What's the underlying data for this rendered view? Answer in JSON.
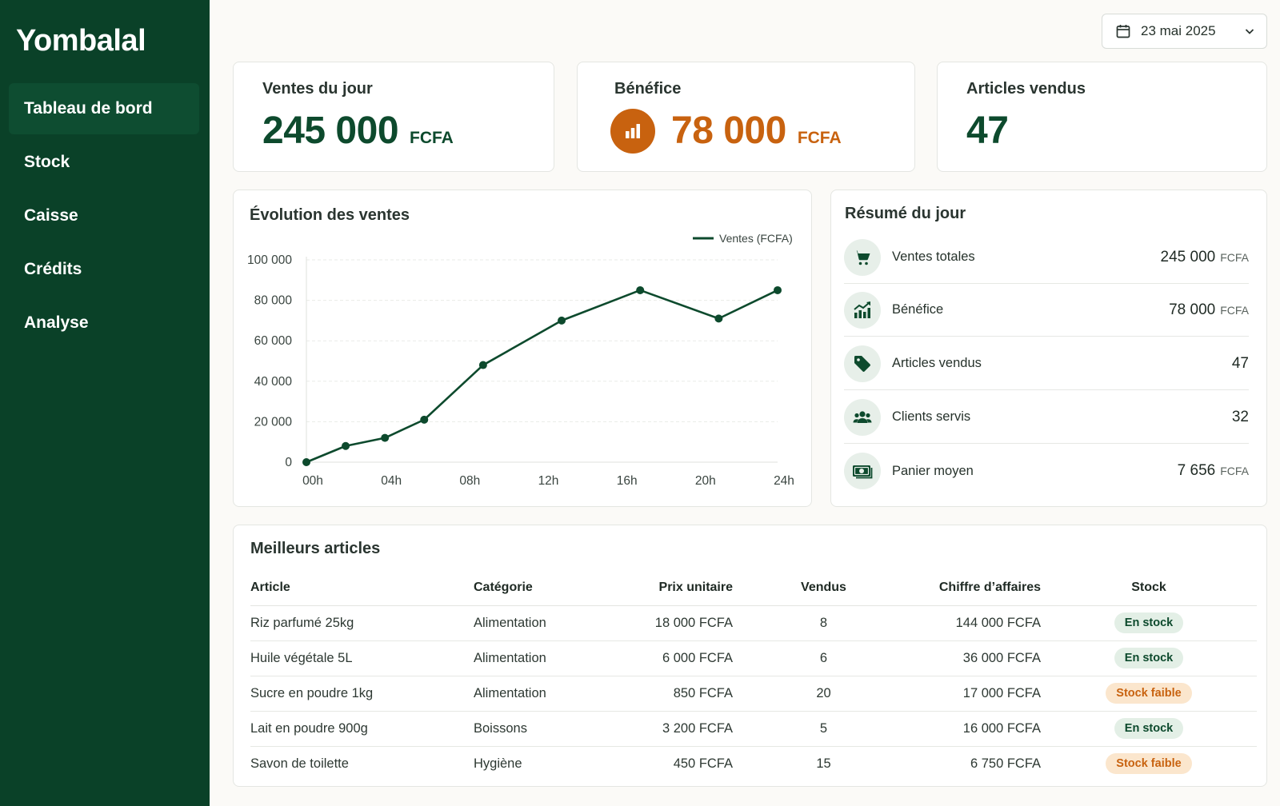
{
  "app": {
    "brand": "Yombalal"
  },
  "sidebar": {
    "items": [
      {
        "label": "Tableau de bord",
        "active": true
      },
      {
        "label": "Stock",
        "active": false
      },
      {
        "label": "Caisse",
        "active": false
      },
      {
        "label": "Crédits",
        "active": false
      },
      {
        "label": "Analyse",
        "active": false
      }
    ]
  },
  "date_picker": {
    "value": "23 mai 2025",
    "icon": "calendar-icon"
  },
  "kpis": [
    {
      "title": "Ventes du jour",
      "value": "245 000",
      "unit": "FCFA",
      "color": "#0d4a2d"
    },
    {
      "title": "Bénéfice",
      "value": "78 000",
      "unit": "FCFA",
      "color": "#c8620f",
      "icon": "bar-chart-icon"
    },
    {
      "title": "Articles vendus",
      "value": "47",
      "unit": "",
      "color": "#0d4a2d"
    }
  ],
  "sales_chart": {
    "title": "Évolution des ventes",
    "legend": "Ventes (FCFA)"
  },
  "chart_data": {
    "type": "line",
    "x": [
      0,
      2,
      4,
      6,
      9,
      13,
      17,
      21,
      24
    ],
    "x_tick_labels": [
      "00h",
      "04h",
      "08h",
      "12h",
      "16h",
      "20h",
      "24h"
    ],
    "x_ticks": [
      0,
      4,
      8,
      12,
      16,
      20,
      24
    ],
    "series": [
      {
        "name": "Ventes (FCFA)",
        "values": [
          0,
          8000,
          12000,
          21000,
          48000,
          70000,
          85000,
          71000,
          85000
        ]
      }
    ],
    "y_tick_labels": [
      "0",
      "20 000",
      "40 000",
      "60 000",
      "80 000",
      "100 000"
    ],
    "ylim": [
      0,
      100000
    ],
    "xlim": [
      0,
      24
    ],
    "grid": true,
    "legend_position": "top-right",
    "line_color": "#0d4a2d"
  },
  "summary": {
    "title": "Résumé du jour",
    "rows": [
      {
        "icon": "cart-icon",
        "label": "Ventes totales",
        "value": "245 000",
        "unit": "FCFA"
      },
      {
        "icon": "growth-chart-icon",
        "label": "Bénéfice",
        "value": "78 000",
        "unit": "FCFA"
      },
      {
        "icon": "tag-icon",
        "label": "Articles vendus",
        "value": "47",
        "unit": ""
      },
      {
        "icon": "users-icon",
        "label": "Clients servis",
        "value": "32",
        "unit": ""
      },
      {
        "icon": "cash-icon",
        "label": "Panier moyen",
        "value": "7 656",
        "unit": "FCFA"
      }
    ]
  },
  "best_items": {
    "title": "Meilleurs articles",
    "columns": [
      "Article",
      "Catégorie",
      "Prix unitaire",
      "Vendus",
      "Chiffre d’affaires",
      "Stock"
    ],
    "rows": [
      {
        "article": "Riz parfumé 25kg",
        "category": "Alimentation",
        "price": "18 000 FCFA",
        "sold": "8",
        "revenue": "144 000 FCFA",
        "stock": "En stock",
        "stock_level": "ok"
      },
      {
        "article": "Huile végétale 5L",
        "category": "Alimentation",
        "price": "6 000 FCFA",
        "sold": "6",
        "revenue": "36 000 FCFA",
        "stock": "En stock",
        "stock_level": "ok"
      },
      {
        "article": "Sucre en poudre 1kg",
        "category": "Alimentation",
        "price": "850 FCFA",
        "sold": "20",
        "revenue": "17 000 FCFA",
        "stock": "Stock faible",
        "stock_level": "low"
      },
      {
        "article": "Lait en poudre 900g",
        "category": "Boissons",
        "price": "3 200 FCFA",
        "sold": "5",
        "revenue": "16 000 FCFA",
        "stock": "En stock",
        "stock_level": "ok"
      },
      {
        "article": "Savon de toilette",
        "category": "Hygiène",
        "price": "450 FCFA",
        "sold": "15",
        "revenue": "6 750 FCFA",
        "stock": "Stock faible",
        "stock_level": "low"
      }
    ]
  },
  "colors": {
    "brand_green": "#0a4128",
    "accent_orange": "#c8620f",
    "ok_bg": "#e3efe6",
    "low_bg": "#fbe6cd"
  }
}
